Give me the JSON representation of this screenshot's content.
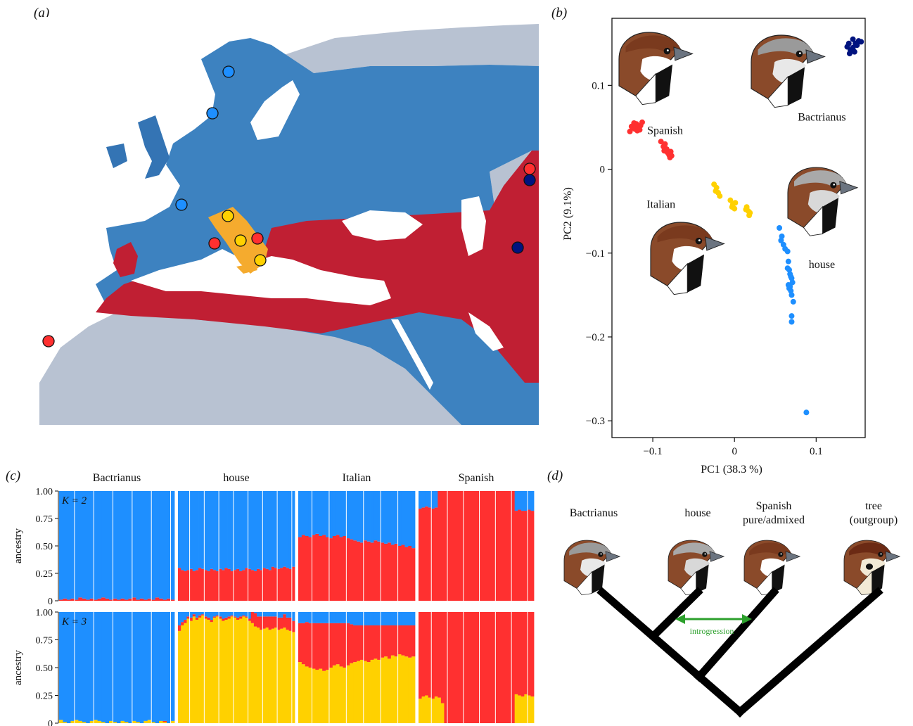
{
  "panels": {
    "a": {
      "letter": "(a)"
    },
    "b": {
      "letter": "(b)"
    },
    "c": {
      "letter": "(c)"
    },
    "d": {
      "letter": "(d)"
    }
  },
  "colors": {
    "house": "#1e8fff",
    "italian": "#ffd100",
    "spanish": "#ff3030",
    "bactrianus": "#00137f",
    "map_house": "#3d82c0",
    "map_spanish": "#c01f33",
    "map_italian": "#f5ab2e",
    "map_land": "#b8c2d2"
  },
  "chart_data": [
    {
      "type": "scatter",
      "panel": "b",
      "xlabel": "PC1 (38.3 %)",
      "ylabel": "PC2 (9.1%)",
      "xlim": [
        -0.15,
        0.16
      ],
      "ylim": [
        -0.32,
        0.18
      ],
      "xticks": [
        -0.1,
        0,
        0.1
      ],
      "xtick_labels": [
        "−0.1",
        "0",
        "0.1"
      ],
      "yticks": [
        0.1,
        0,
        -0.1,
        -0.2,
        -0.3
      ],
      "ytick_labels": [
        "0.1",
        "0",
        "−0.1",
        "−0.2",
        "−0.3"
      ],
      "series": [
        {
          "name": "Spanish",
          "color": "#ff3030",
          "points": [
            [
              -0.125,
              0.05
            ],
            [
              -0.122,
              0.048
            ],
            [
              -0.12,
              0.054
            ],
            [
              -0.118,
              0.05
            ],
            [
              -0.115,
              0.052
            ],
            [
              -0.113,
              0.056
            ],
            [
              -0.128,
              0.045
            ],
            [
              -0.119,
              0.046
            ],
            [
              -0.116,
              0.047
            ],
            [
              -0.126,
              0.051
            ],
            [
              -0.123,
              0.055
            ],
            [
              -0.09,
              0.033
            ],
            [
              -0.087,
              0.027
            ],
            [
              -0.085,
              0.03
            ],
            [
              -0.083,
              0.024
            ],
            [
              -0.082,
              0.02
            ],
            [
              -0.08,
              0.017
            ],
            [
              -0.078,
              0.021
            ],
            [
              -0.079,
              0.014
            ],
            [
              -0.081,
              0.019
            ],
            [
              -0.086,
              0.022
            ],
            [
              -0.077,
              0.016
            ]
          ]
        },
        {
          "name": "Italian",
          "color": "#ffd100",
          "points": [
            [
              -0.025,
              -0.018
            ],
            [
              -0.022,
              -0.022
            ],
            [
              -0.02,
              -0.028
            ],
            [
              -0.018,
              -0.032
            ],
            [
              -0.023,
              -0.026
            ],
            [
              -0.005,
              -0.037
            ],
            [
              -0.002,
              -0.042
            ],
            [
              0,
              -0.047
            ],
            [
              -0.003,
              -0.045
            ],
            [
              0.001,
              -0.04
            ],
            [
              0.015,
              -0.045
            ],
            [
              0.017,
              -0.05
            ],
            [
              0.019,
              -0.052
            ],
            [
              0.014,
              -0.048
            ],
            [
              0.018,
              -0.055
            ]
          ]
        },
        {
          "name": "house",
          "color": "#1e8fff",
          "points": [
            [
              0.055,
              -0.07
            ],
            [
              0.058,
              -0.08
            ],
            [
              0.057,
              -0.085
            ],
            [
              0.06,
              -0.09
            ],
            [
              0.062,
              -0.095
            ],
            [
              0.065,
              -0.098
            ],
            [
              0.066,
              -0.11
            ],
            [
              0.067,
              -0.12
            ],
            [
              0.065,
              -0.118
            ],
            [
              0.068,
              -0.125
            ],
            [
              0.07,
              -0.13
            ],
            [
              0.069,
              -0.128
            ],
            [
              0.071,
              -0.135
            ],
            [
              0.066,
              -0.138
            ],
            [
              0.067,
              -0.142
            ],
            [
              0.069,
              -0.145
            ],
            [
              0.07,
              -0.15
            ],
            [
              0.072,
              -0.158
            ],
            [
              0.07,
              -0.175
            ],
            [
              0.07,
              -0.182
            ],
            [
              0.068,
              -0.14
            ],
            [
              0.088,
              -0.29
            ]
          ]
        },
        {
          "name": "Bactrianus",
          "color": "#00137f",
          "points": [
            [
              0.14,
              0.15
            ],
            [
              0.145,
              0.155
            ],
            [
              0.148,
              0.15
            ],
            [
              0.152,
              0.153
            ],
            [
              0.145,
              0.145
            ],
            [
              0.142,
              0.142
            ],
            [
              0.138,
              0.146
            ],
            [
              0.15,
              0.148
            ],
            [
              0.155,
              0.152
            ],
            [
              0.147,
              0.14
            ],
            [
              0.141,
              0.138
            ]
          ]
        }
      ],
      "labels": [
        {
          "text": "Spanish",
          "x": -0.085,
          "y": 0.042
        },
        {
          "text": "Bactrianus",
          "x": 0.107,
          "y": 0.058
        },
        {
          "text": "Italian",
          "x": -0.09,
          "y": -0.046
        },
        {
          "text": "house",
          "x": 0.107,
          "y": -0.118
        }
      ]
    },
    {
      "type": "bar",
      "panel": "c",
      "stacked": true,
      "ylabel": "ancestry",
      "ylim": [
        0,
        1
      ],
      "yticks": [
        "0",
        "0.25",
        "0.50",
        "0.75",
        "1.00"
      ],
      "groups": [
        "Bactrianus",
        "house",
        "Italian",
        "Spanish"
      ],
      "rows": [
        {
          "label": "K = 2",
          "components": [
            "red",
            "blue"
          ],
          "groups": [
            {
              "name": "Bactrianus",
              "red": [
                0.01,
                0.02,
                0.01,
                0.02,
                0.01,
                0.03,
                0.02,
                0.01,
                0.02,
                0.01,
                0.02,
                0.03,
                0.02,
                0.01,
                0.02,
                0.01,
                0.02,
                0.01,
                0.02,
                0.03,
                0.01,
                0.02,
                0.01,
                0.02,
                0.01,
                0.03,
                0.02,
                0.01,
                0.02,
                0.01
              ]
            },
            {
              "name": "house",
              "red": [
                0.3,
                0.28,
                0.27,
                0.28,
                0.29,
                0.27,
                0.28,
                0.3,
                0.29,
                0.28,
                0.27,
                0.29,
                0.28,
                0.27,
                0.29,
                0.28,
                0.3,
                0.29,
                0.27,
                0.28,
                0.29,
                0.27,
                0.28,
                0.3,
                0.29,
                0.28,
                0.27,
                0.29,
                0.28,
                0.3,
                0.29,
                0.28,
                0.31,
                0.3,
                0.29,
                0.3,
                0.31,
                0.3,
                0.29,
                0.31
              ]
            },
            {
              "name": "Italian",
              "red": [
                0.58,
                0.6,
                0.59,
                0.58,
                0.6,
                0.61,
                0.59,
                0.6,
                0.58,
                0.57,
                0.59,
                0.6,
                0.58,
                0.59,
                0.57,
                0.56,
                0.55,
                0.54,
                0.53,
                0.55,
                0.54,
                0.53,
                0.55,
                0.54,
                0.53,
                0.52,
                0.53,
                0.51,
                0.52,
                0.5,
                0.51,
                0.49,
                0.5,
                0.48
              ]
            },
            {
              "name": "Spanish",
              "red": [
                0.84,
                0.85,
                0.86,
                0.85,
                0.84,
                0.85,
                1,
                1,
                1,
                1,
                1,
                1,
                1,
                1,
                1,
                1,
                1,
                1,
                1,
                1,
                1,
                1,
                1,
                1,
                1,
                1,
                1,
                1,
                1,
                1,
                0.82,
                0.83,
                0.82,
                0.82,
                0.83,
                0.82
              ]
            }
          ]
        },
        {
          "label": "K = 3",
          "components": [
            "yellow",
            "red",
            "blue"
          ],
          "groups": [
            {
              "name": "Bactrianus",
              "yellow": [
                0.03,
                0.01,
                0.0,
                0.02,
                0.03,
                0.02,
                0.01,
                0.0,
                0.02,
                0.03,
                0.02,
                0.01,
                0.0,
                0.02,
                0.01,
                0.0,
                0.02,
                0.01,
                0.0,
                0.02,
                0.01,
                0.0,
                0.02,
                0.03,
                0.01,
                0.0,
                0.02,
                0.01,
                0.0,
                0.02
              ],
              "red": [
                0,
                0,
                0,
                0,
                0,
                0,
                0,
                0,
                0,
                0,
                0,
                0,
                0,
                0,
                0,
                0,
                0,
                0,
                0,
                0,
                0,
                0,
                0,
                0,
                0,
                0,
                0,
                0.01,
                0,
                0
              ]
            },
            {
              "name": "house",
              "yellow": [
                0.83,
                0.88,
                0.9,
                0.94,
                0.92,
                0.96,
                0.93,
                0.95,
                0.97,
                0.94,
                0.93,
                0.91,
                0.95,
                0.96,
                0.94,
                0.92,
                0.93,
                0.94,
                0.96,
                0.95,
                0.93,
                0.94,
                0.96,
                0.95,
                0.92,
                0.9,
                0.87,
                0.86,
                0.84,
                0.85,
                0.86,
                0.84,
                0.85,
                0.86,
                0.84,
                0.85,
                0.86,
                0.84,
                0.83,
                0.82
              ],
              "red": [
                0.05,
                0.03,
                0.03,
                0.02,
                0.03,
                0.02,
                0.02,
                0.02,
                0.01,
                0.02,
                0.02,
                0.02,
                0.01,
                0.01,
                0.02,
                0.02,
                0.02,
                0.02,
                0.01,
                0.01,
                0.02,
                0.02,
                0.01,
                0.01,
                0.02,
                0.1,
                0.12,
                0.1,
                0.12,
                0.11,
                0.1,
                0.12,
                0.11,
                0.1,
                0.11,
                0.1,
                0.12,
                0.11,
                0.12,
                0.1
              ]
            },
            {
              "name": "Italian",
              "yellow": [
                0.55,
                0.53,
                0.51,
                0.5,
                0.49,
                0.48,
                0.49,
                0.47,
                0.48,
                0.5,
                0.52,
                0.53,
                0.51,
                0.5,
                0.52,
                0.54,
                0.55,
                0.56,
                0.57,
                0.56,
                0.55,
                0.57,
                0.58,
                0.57,
                0.59,
                0.6,
                0.58,
                0.61,
                0.6,
                0.62,
                0.61,
                0.6,
                0.59,
                0.6
              ],
              "red": [
                0.35,
                0.37,
                0.4,
                0.4,
                0.41,
                0.42,
                0.41,
                0.43,
                0.42,
                0.4,
                0.38,
                0.37,
                0.39,
                0.4,
                0.38,
                0.35,
                0.33,
                0.32,
                0.31,
                0.32,
                0.33,
                0.31,
                0.3,
                0.31,
                0.29,
                0.28,
                0.3,
                0.27,
                0.28,
                0.26,
                0.27,
                0.28,
                0.29,
                0.28
              ]
            },
            {
              "name": "Spanish",
              "yellow": [
                0.22,
                0.24,
                0.25,
                0.23,
                0.22,
                0.24,
                0.23,
                0.18,
                0,
                0,
                0,
                0,
                0,
                0,
                0,
                0,
                0,
                0,
                0,
                0,
                0,
                0,
                0,
                0,
                0,
                0,
                0,
                0,
                0,
                0,
                0.26,
                0.25,
                0.24,
                0.26,
                0.25,
                0.24
              ],
              "red": [
                0.78,
                0.76,
                0.75,
                0.77,
                0.78,
                0.76,
                0.77,
                0.82,
                1,
                1,
                1,
                1,
                1,
                1,
                1,
                1,
                1,
                1,
                1,
                1,
                1,
                1,
                1,
                1,
                1,
                1,
                1,
                1,
                1,
                1,
                0.74,
                0.75,
                0.76,
                0.74,
                0.75,
                0.76
              ]
            }
          ]
        }
      ]
    }
  ],
  "tree": {
    "taxa": [
      {
        "label": "Bactrianus",
        "head": "bactrianus"
      },
      {
        "label": "house",
        "head": "house"
      },
      {
        "label": "Spanish",
        "label2": "pure/admixed",
        "head": "spanish"
      },
      {
        "label": "tree",
        "label2": "(outgroup)",
        "head": "tree"
      }
    ],
    "introgression_label": "introgression",
    "introgression_color": "#2ca02c"
  }
}
